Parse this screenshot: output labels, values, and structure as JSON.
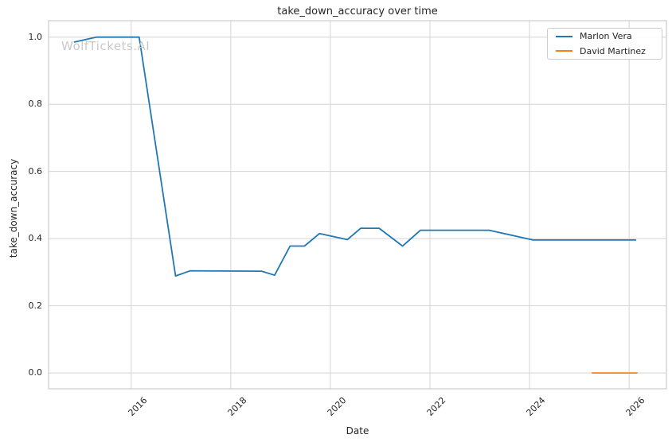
{
  "watermark": {
    "text": "WolfTickets.AI"
  },
  "chart_data": {
    "type": "line",
    "title": "take_down_accuracy over time",
    "xlabel": "Date",
    "ylabel": "take_down_accuracy",
    "grid": true,
    "legend_position": "upper right",
    "xlim": [
      2014.34,
      2026.75
    ],
    "ylim": [
      -0.047,
      1.049
    ],
    "x_ticks": [
      2016,
      2018,
      2020,
      2022,
      2024,
      2026
    ],
    "x_tick_labels": [
      "2016",
      "2018",
      "2020",
      "2022",
      "2024",
      "2026"
    ],
    "y_ticks": [
      0.0,
      0.2,
      0.4,
      0.6,
      0.8,
      1.0
    ],
    "y_tick_labels": [
      "0.0",
      "0.2",
      "0.4",
      "0.6",
      "0.8",
      "1.0"
    ],
    "colors": {
      "grid": "#d4d4d4",
      "axes_border": "#cccccc",
      "text": "#262626"
    },
    "series": [
      {
        "name": "Marlon Vera",
        "color": "#1f77b4",
        "points": [
          [
            2014.85,
            0.985
          ],
          [
            2015.3,
            1.0
          ],
          [
            2016.16,
            1.0
          ],
          [
            2016.89,
            0.289
          ],
          [
            2017.18,
            0.304
          ],
          [
            2018.62,
            0.303
          ],
          [
            2018.88,
            0.291
          ],
          [
            2019.19,
            0.378
          ],
          [
            2019.48,
            0.378
          ],
          [
            2019.78,
            0.415
          ],
          [
            2020.34,
            0.397
          ],
          [
            2020.61,
            0.431
          ],
          [
            2020.98,
            0.431
          ],
          [
            2021.45,
            0.378
          ],
          [
            2021.81,
            0.425
          ],
          [
            2023.19,
            0.425
          ],
          [
            2024.07,
            0.396
          ],
          [
            2026.14,
            0.396
          ]
        ]
      },
      {
        "name": "David Martinez",
        "color": "#ff7f0e",
        "points": [
          [
            2025.25,
            0.0
          ],
          [
            2026.17,
            0.0
          ]
        ]
      }
    ]
  }
}
